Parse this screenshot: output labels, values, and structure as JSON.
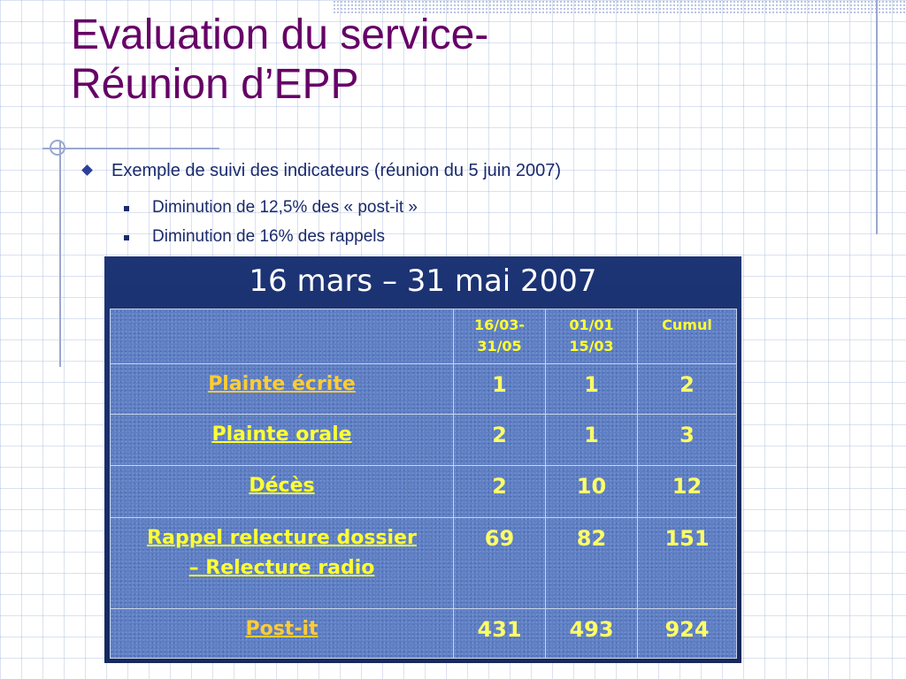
{
  "slide": {
    "title_line1": "Evaluation du service-",
    "title_line2": "Réunion d’EPP",
    "bullet1": "Exemple de suivi des indicateurs (réunion du 5 juin 2007)",
    "sub_bullets": [
      "Diminution de 12,5% des « post-it »",
      "Diminution de 16% des rappels"
    ]
  },
  "table": {
    "title": "16 mars – 31 mai 2007",
    "headers": {
      "col1_line1": "16/03-",
      "col1_line2": "31/05",
      "col2_line1": "01/01",
      "col2_line2": "15/03",
      "col3": "Cumul"
    },
    "rows": [
      {
        "label": "Plainte écrite",
        "v1": "1",
        "v2": "1",
        "v3": "2"
      },
      {
        "label": "Plainte orale",
        "v1": "2",
        "v2": "1",
        "v3": "3"
      },
      {
        "label": "Décès",
        "v1": "2",
        "v2": "10",
        "v3": "12"
      },
      {
        "label_line1": "Rappel relecture dossier",
        "label_line2": "– Relecture radio",
        "v1": "69",
        "v2": "82",
        "v3": "151"
      },
      {
        "label": "Post-it",
        "v1": "431",
        "v2": "493",
        "v3": "924"
      }
    ]
  },
  "colors": {
    "title": "#660066",
    "bullet_text": "#1a2a6c",
    "table_background": "#1d3475",
    "cell_text": "#ffff33"
  }
}
